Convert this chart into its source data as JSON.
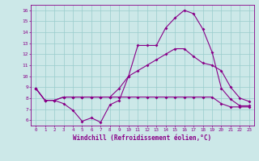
{
  "xlabel": "Windchill (Refroidissement éolien,°C)",
  "background_color": "#cce8e8",
  "line_color": "#880088",
  "grid_color": "#99cccc",
  "hours": [
    0,
    1,
    2,
    3,
    4,
    5,
    6,
    7,
    8,
    9,
    10,
    11,
    12,
    13,
    14,
    15,
    16,
    17,
    18,
    19,
    20,
    21,
    22,
    23
  ],
  "line1": [
    8.9,
    7.8,
    7.8,
    7.5,
    6.9,
    5.9,
    6.2,
    5.8,
    7.4,
    7.8,
    10.0,
    12.8,
    12.8,
    12.8,
    14.4,
    15.3,
    16.0,
    15.7,
    14.3,
    12.2,
    8.9,
    7.9,
    7.3,
    7.3
  ],
  "line2": [
    8.9,
    7.8,
    7.8,
    8.1,
    8.1,
    8.1,
    8.1,
    8.1,
    8.1,
    8.9,
    10.0,
    10.5,
    11.0,
    11.5,
    12.0,
    12.5,
    12.5,
    11.8,
    11.2,
    11.0,
    10.5,
    9.0,
    8.0,
    7.7
  ],
  "line3": [
    8.9,
    7.8,
    7.8,
    8.1,
    8.1,
    8.1,
    8.1,
    8.1,
    8.1,
    8.1,
    8.1,
    8.1,
    8.1,
    8.1,
    8.1,
    8.1,
    8.1,
    8.1,
    8.1,
    8.1,
    7.5,
    7.2,
    7.2,
    7.2
  ],
  "ylim": [
    5.5,
    16.5
  ],
  "yticks": [
    6,
    7,
    8,
    9,
    10,
    11,
    12,
    13,
    14,
    15,
    16
  ],
  "xlim": [
    -0.5,
    23.5
  ],
  "xticks": [
    0,
    1,
    2,
    3,
    4,
    5,
    6,
    7,
    8,
    9,
    10,
    11,
    12,
    13,
    14,
    15,
    16,
    17,
    18,
    19,
    20,
    21,
    22,
    23
  ]
}
